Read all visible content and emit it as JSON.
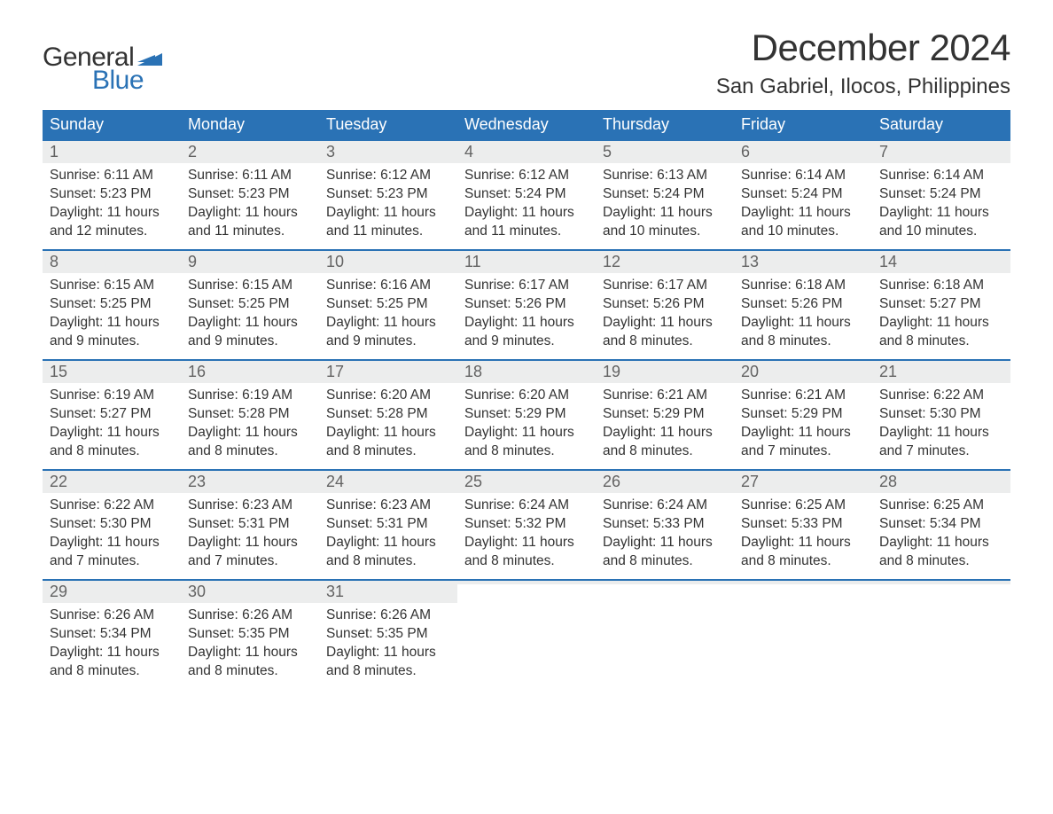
{
  "logo": {
    "text_general": "General",
    "text_blue": "Blue",
    "flag_color": "#2a72b5"
  },
  "title": "December 2024",
  "location": "San Gabriel, Ilocos, Philippines",
  "colors": {
    "header_bg": "#2a72b5",
    "header_text": "#ffffff",
    "daynum_bg": "#eceded",
    "daynum_text": "#636363",
    "body_text": "#333333",
    "week_border": "#2a72b5",
    "page_bg": "#ffffff"
  },
  "fonts": {
    "title_size_pt": 32,
    "location_size_pt": 18,
    "weekday_size_pt": 14,
    "daynum_size_pt": 14,
    "body_size_pt": 12
  },
  "weekdays": [
    "Sunday",
    "Monday",
    "Tuesday",
    "Wednesday",
    "Thursday",
    "Friday",
    "Saturday"
  ],
  "weeks": [
    [
      {
        "day": "1",
        "sunrise": "Sunrise: 6:11 AM",
        "sunset": "Sunset: 5:23 PM",
        "daylight1": "Daylight: 11 hours",
        "daylight2": "and 12 minutes."
      },
      {
        "day": "2",
        "sunrise": "Sunrise: 6:11 AM",
        "sunset": "Sunset: 5:23 PM",
        "daylight1": "Daylight: 11 hours",
        "daylight2": "and 11 minutes."
      },
      {
        "day": "3",
        "sunrise": "Sunrise: 6:12 AM",
        "sunset": "Sunset: 5:23 PM",
        "daylight1": "Daylight: 11 hours",
        "daylight2": "and 11 minutes."
      },
      {
        "day": "4",
        "sunrise": "Sunrise: 6:12 AM",
        "sunset": "Sunset: 5:24 PM",
        "daylight1": "Daylight: 11 hours",
        "daylight2": "and 11 minutes."
      },
      {
        "day": "5",
        "sunrise": "Sunrise: 6:13 AM",
        "sunset": "Sunset: 5:24 PM",
        "daylight1": "Daylight: 11 hours",
        "daylight2": "and 10 minutes."
      },
      {
        "day": "6",
        "sunrise": "Sunrise: 6:14 AM",
        "sunset": "Sunset: 5:24 PM",
        "daylight1": "Daylight: 11 hours",
        "daylight2": "and 10 minutes."
      },
      {
        "day": "7",
        "sunrise": "Sunrise: 6:14 AM",
        "sunset": "Sunset: 5:24 PM",
        "daylight1": "Daylight: 11 hours",
        "daylight2": "and 10 minutes."
      }
    ],
    [
      {
        "day": "8",
        "sunrise": "Sunrise: 6:15 AM",
        "sunset": "Sunset: 5:25 PM",
        "daylight1": "Daylight: 11 hours",
        "daylight2": "and 9 minutes."
      },
      {
        "day": "9",
        "sunrise": "Sunrise: 6:15 AM",
        "sunset": "Sunset: 5:25 PM",
        "daylight1": "Daylight: 11 hours",
        "daylight2": "and 9 minutes."
      },
      {
        "day": "10",
        "sunrise": "Sunrise: 6:16 AM",
        "sunset": "Sunset: 5:25 PM",
        "daylight1": "Daylight: 11 hours",
        "daylight2": "and 9 minutes."
      },
      {
        "day": "11",
        "sunrise": "Sunrise: 6:17 AM",
        "sunset": "Sunset: 5:26 PM",
        "daylight1": "Daylight: 11 hours",
        "daylight2": "and 9 minutes."
      },
      {
        "day": "12",
        "sunrise": "Sunrise: 6:17 AM",
        "sunset": "Sunset: 5:26 PM",
        "daylight1": "Daylight: 11 hours",
        "daylight2": "and 8 minutes."
      },
      {
        "day": "13",
        "sunrise": "Sunrise: 6:18 AM",
        "sunset": "Sunset: 5:26 PM",
        "daylight1": "Daylight: 11 hours",
        "daylight2": "and 8 minutes."
      },
      {
        "day": "14",
        "sunrise": "Sunrise: 6:18 AM",
        "sunset": "Sunset: 5:27 PM",
        "daylight1": "Daylight: 11 hours",
        "daylight2": "and 8 minutes."
      }
    ],
    [
      {
        "day": "15",
        "sunrise": "Sunrise: 6:19 AM",
        "sunset": "Sunset: 5:27 PM",
        "daylight1": "Daylight: 11 hours",
        "daylight2": "and 8 minutes."
      },
      {
        "day": "16",
        "sunrise": "Sunrise: 6:19 AM",
        "sunset": "Sunset: 5:28 PM",
        "daylight1": "Daylight: 11 hours",
        "daylight2": "and 8 minutes."
      },
      {
        "day": "17",
        "sunrise": "Sunrise: 6:20 AM",
        "sunset": "Sunset: 5:28 PM",
        "daylight1": "Daylight: 11 hours",
        "daylight2": "and 8 minutes."
      },
      {
        "day": "18",
        "sunrise": "Sunrise: 6:20 AM",
        "sunset": "Sunset: 5:29 PM",
        "daylight1": "Daylight: 11 hours",
        "daylight2": "and 8 minutes."
      },
      {
        "day": "19",
        "sunrise": "Sunrise: 6:21 AM",
        "sunset": "Sunset: 5:29 PM",
        "daylight1": "Daylight: 11 hours",
        "daylight2": "and 8 minutes."
      },
      {
        "day": "20",
        "sunrise": "Sunrise: 6:21 AM",
        "sunset": "Sunset: 5:29 PM",
        "daylight1": "Daylight: 11 hours",
        "daylight2": "and 7 minutes."
      },
      {
        "day": "21",
        "sunrise": "Sunrise: 6:22 AM",
        "sunset": "Sunset: 5:30 PM",
        "daylight1": "Daylight: 11 hours",
        "daylight2": "and 7 minutes."
      }
    ],
    [
      {
        "day": "22",
        "sunrise": "Sunrise: 6:22 AM",
        "sunset": "Sunset: 5:30 PM",
        "daylight1": "Daylight: 11 hours",
        "daylight2": "and 7 minutes."
      },
      {
        "day": "23",
        "sunrise": "Sunrise: 6:23 AM",
        "sunset": "Sunset: 5:31 PM",
        "daylight1": "Daylight: 11 hours",
        "daylight2": "and 7 minutes."
      },
      {
        "day": "24",
        "sunrise": "Sunrise: 6:23 AM",
        "sunset": "Sunset: 5:31 PM",
        "daylight1": "Daylight: 11 hours",
        "daylight2": "and 8 minutes."
      },
      {
        "day": "25",
        "sunrise": "Sunrise: 6:24 AM",
        "sunset": "Sunset: 5:32 PM",
        "daylight1": "Daylight: 11 hours",
        "daylight2": "and 8 minutes."
      },
      {
        "day": "26",
        "sunrise": "Sunrise: 6:24 AM",
        "sunset": "Sunset: 5:33 PM",
        "daylight1": "Daylight: 11 hours",
        "daylight2": "and 8 minutes."
      },
      {
        "day": "27",
        "sunrise": "Sunrise: 6:25 AM",
        "sunset": "Sunset: 5:33 PM",
        "daylight1": "Daylight: 11 hours",
        "daylight2": "and 8 minutes."
      },
      {
        "day": "28",
        "sunrise": "Sunrise: 6:25 AM",
        "sunset": "Sunset: 5:34 PM",
        "daylight1": "Daylight: 11 hours",
        "daylight2": "and 8 minutes."
      }
    ],
    [
      {
        "day": "29",
        "sunrise": "Sunrise: 6:26 AM",
        "sunset": "Sunset: 5:34 PM",
        "daylight1": "Daylight: 11 hours",
        "daylight2": "and 8 minutes."
      },
      {
        "day": "30",
        "sunrise": "Sunrise: 6:26 AM",
        "sunset": "Sunset: 5:35 PM",
        "daylight1": "Daylight: 11 hours",
        "daylight2": "and 8 minutes."
      },
      {
        "day": "31",
        "sunrise": "Sunrise: 6:26 AM",
        "sunset": "Sunset: 5:35 PM",
        "daylight1": "Daylight: 11 hours",
        "daylight2": "and 8 minutes."
      },
      {
        "empty": true
      },
      {
        "empty": true
      },
      {
        "empty": true
      },
      {
        "empty": true
      }
    ]
  ]
}
